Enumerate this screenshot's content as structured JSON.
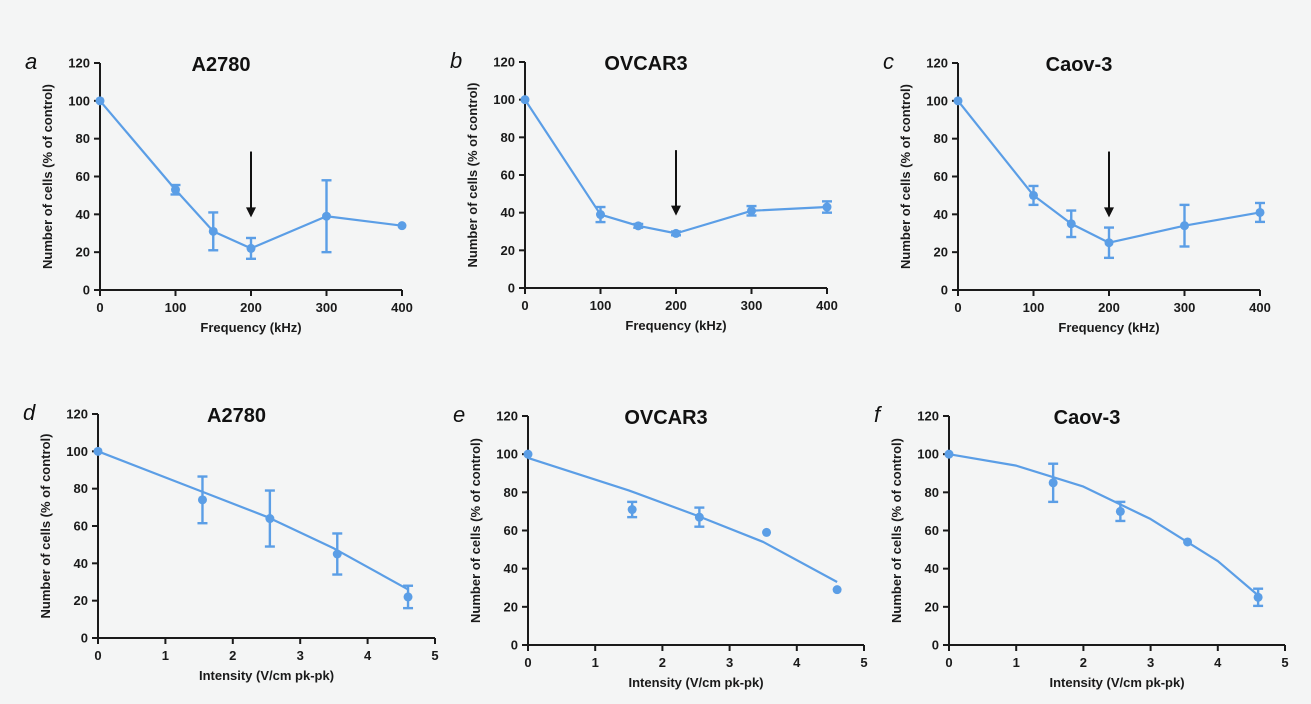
{
  "colors": {
    "series": "#5b9ee6",
    "axis": "#1a1a1a",
    "arrow": "#111111",
    "background": "#f4f5f5"
  },
  "chart_data": [
    {
      "panel": "a",
      "title": "A2780",
      "type": "line",
      "xlabel": "Frequency (kHz)",
      "ylabel": "Number of cells  (% of control)",
      "xlim": [
        0,
        400
      ],
      "ylim": [
        0,
        120
      ],
      "xticks": [
        0,
        100,
        200,
        300,
        400
      ],
      "yticks": [
        0,
        20,
        40,
        60,
        80,
        100,
        120
      ],
      "fit": "connect",
      "points": [
        {
          "x": 0,
          "y": 100,
          "err": 0
        },
        {
          "x": 100,
          "y": 53,
          "err": 2.5
        },
        {
          "x": 150,
          "y": 31,
          "err": 10
        },
        {
          "x": 200,
          "y": 22,
          "err": 5.5
        },
        {
          "x": 300,
          "y": 39,
          "err": 19
        },
        {
          "x": 400,
          "y": 34,
          "err": 0
        }
      ],
      "arrow_x": 200
    },
    {
      "panel": "b",
      "title": "OVCAR3",
      "type": "line",
      "xlabel": "Frequency (kHz)",
      "ylabel": "Number of cells  (% of control)",
      "xlim": [
        0,
        400
      ],
      "ylim": [
        0,
        120
      ],
      "xticks": [
        0,
        100,
        200,
        300,
        400
      ],
      "yticks": [
        0,
        20,
        40,
        60,
        80,
        100,
        120
      ],
      "fit": "connect",
      "points": [
        {
          "x": 0,
          "y": 100,
          "err": 0
        },
        {
          "x": 100,
          "y": 39,
          "err": 4
        },
        {
          "x": 150,
          "y": 33,
          "err": 1
        },
        {
          "x": 200,
          "y": 29,
          "err": 1
        },
        {
          "x": 300,
          "y": 41,
          "err": 2.5
        },
        {
          "x": 400,
          "y": 43,
          "err": 3
        }
      ],
      "arrow_x": 200
    },
    {
      "panel": "c",
      "title": "Caov-3",
      "type": "line",
      "xlabel": "Frequency (kHz)",
      "ylabel": "Number of cells  (% of control)",
      "xlim": [
        0,
        400
      ],
      "ylim": [
        0,
        120
      ],
      "xticks": [
        0,
        100,
        200,
        300,
        400
      ],
      "yticks": [
        0,
        20,
        40,
        60,
        80,
        100,
        120
      ],
      "fit": "connect",
      "points": [
        {
          "x": 0,
          "y": 100,
          "err": 0
        },
        {
          "x": 100,
          "y": 50,
          "err": 5
        },
        {
          "x": 150,
          "y": 35,
          "err": 7
        },
        {
          "x": 200,
          "y": 25,
          "err": 8
        },
        {
          "x": 300,
          "y": 34,
          "err": 11
        },
        {
          "x": 400,
          "y": 41,
          "err": 5
        }
      ],
      "arrow_x": 200
    },
    {
      "panel": "d",
      "title": "A2780",
      "type": "scatter",
      "xlabel": "Intensity (V/cm pk-pk)",
      "ylabel": "Number of cells (% of control)",
      "xlim": [
        0,
        5
      ],
      "ylim": [
        0,
        120
      ],
      "xticks": [
        0,
        1,
        2,
        3,
        4,
        5
      ],
      "yticks": [
        0,
        20,
        40,
        60,
        80,
        100,
        120
      ],
      "fit": "curve",
      "points": [
        {
          "x": 0,
          "y": 100,
          "err": 0
        },
        {
          "x": 1.55,
          "y": 74,
          "err": 12.5
        },
        {
          "x": 2.55,
          "y": 64,
          "err": 15
        },
        {
          "x": 3.55,
          "y": 45,
          "err": 11
        },
        {
          "x": 4.6,
          "y": 22,
          "err": 6
        }
      ],
      "fit_line": [
        [
          0,
          100
        ],
        [
          1.5,
          79
        ],
        [
          2.5,
          65
        ],
        [
          3.5,
          48
        ],
        [
          4.6,
          26
        ]
      ]
    },
    {
      "panel": "e",
      "title": "OVCAR3",
      "type": "scatter",
      "xlabel": "Intensity (V/cm pk-pk)",
      "ylabel": "Number of cells  (% of control)",
      "xlim": [
        0,
        5
      ],
      "ylim": [
        0,
        120
      ],
      "xticks": [
        0,
        1,
        2,
        3,
        4,
        5
      ],
      "yticks": [
        0,
        20,
        40,
        60,
        80,
        100,
        120
      ],
      "fit": "curve",
      "points": [
        {
          "x": 0,
          "y": 100,
          "err": 0
        },
        {
          "x": 1.55,
          "y": 71,
          "err": 4
        },
        {
          "x": 2.55,
          "y": 67,
          "err": 5
        },
        {
          "x": 3.55,
          "y": 59,
          "err": 0
        },
        {
          "x": 4.6,
          "y": 29,
          "err": 0
        }
      ],
      "fit_line": [
        [
          0,
          98
        ],
        [
          1.5,
          81
        ],
        [
          2.5,
          68
        ],
        [
          3.5,
          54
        ],
        [
          4.6,
          33
        ]
      ]
    },
    {
      "panel": "f",
      "title": "Caov-3",
      "type": "scatter",
      "xlabel": "Intensity (V/cm pk-pk)",
      "ylabel": "Number of cells  (% of control)",
      "xlim": [
        0,
        5
      ],
      "ylim": [
        0,
        120
      ],
      "xticks": [
        0,
        1,
        2,
        3,
        4,
        5
      ],
      "yticks": [
        0,
        20,
        40,
        60,
        80,
        100,
        120
      ],
      "fit": "curve",
      "points": [
        {
          "x": 0,
          "y": 100,
          "err": 0
        },
        {
          "x": 1.55,
          "y": 85,
          "err": 10
        },
        {
          "x": 2.55,
          "y": 70,
          "err": 5
        },
        {
          "x": 3.55,
          "y": 54,
          "err": 0
        },
        {
          "x": 4.6,
          "y": 25,
          "err": 4.5
        }
      ],
      "fit_line": [
        [
          0,
          100
        ],
        [
          1,
          94
        ],
        [
          2,
          83
        ],
        [
          3,
          66
        ],
        [
          4,
          44
        ],
        [
          4.6,
          26
        ]
      ]
    }
  ]
}
